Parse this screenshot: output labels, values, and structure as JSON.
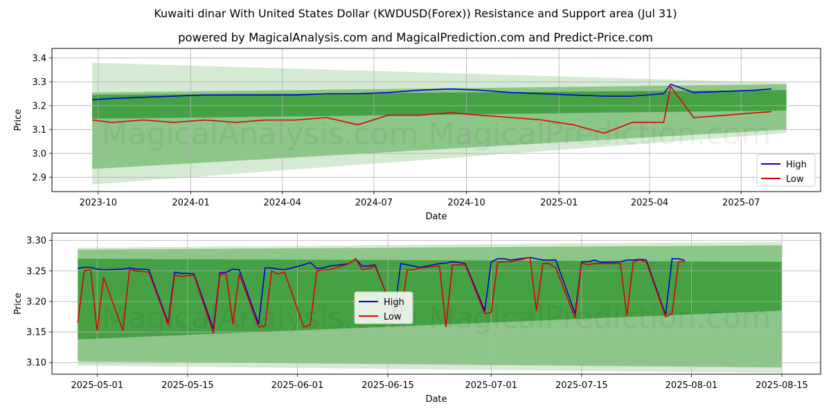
{
  "figure": {
    "title": "Kuwaiti dinar With United States Dollar (KWDUSD(Forex)) Resistance and Support area (Jul 31)",
    "subtitle": "powered by MagicalAnalysis.com and MagicalPrediction.com and Predict-Price.com",
    "watermark": "MagicalAnalysis.com    MagicalPrediction.com"
  },
  "colors": {
    "high": "#0000cc",
    "low": "#dd0000",
    "band_light": "#c6e3c3",
    "band_mid": "#7fbf7b",
    "band_dark": "#3a9a3a"
  },
  "chart_data": [
    {
      "type": "line",
      "title": "",
      "xlabel": "Date",
      "ylabel": "Price",
      "x_ticks": [
        "2023-10",
        "2024-01",
        "2024-04",
        "2024-07",
        "2024-10",
        "2025-01",
        "2025-04",
        "2025-07"
      ],
      "y_ticks": [
        "2.9",
        "3.0",
        "3.1",
        "3.2",
        "3.3",
        "3.4"
      ],
      "xlim": [
        "2023-08-16",
        "2025-09-18"
      ],
      "ylim": [
        2.84,
        3.44
      ],
      "grid": true,
      "legend": "lower-right",
      "bands": {
        "x": [
          "2023-09-25",
          "2025-08-15"
        ],
        "outer_top": [
          3.38,
          3.295
        ],
        "outer_bottom": [
          2.87,
          3.085
        ],
        "mid_top": [
          3.255,
          3.29
        ],
        "mid_bottom": [
          2.935,
          3.1
        ],
        "inner_top": [
          3.245,
          3.265
        ],
        "inner_bottom": [
          3.145,
          3.18
        ]
      },
      "series": [
        {
          "name": "High",
          "x": [
            "2023-09-25",
            "2023-10-15",
            "2023-11-15",
            "2023-12-15",
            "2024-01-15",
            "2024-02-15",
            "2024-03-15",
            "2024-04-15",
            "2024-05-15",
            "2024-06-15",
            "2024-07-15",
            "2024-08-15",
            "2024-09-15",
            "2024-10-15",
            "2024-11-15",
            "2024-12-15",
            "2025-01-15",
            "2025-02-15",
            "2025-03-15",
            "2025-04-15",
            "2025-04-22",
            "2025-05-15",
            "2025-06-15",
            "2025-07-15",
            "2025-07-31"
          ],
          "values": [
            3.225,
            3.23,
            3.235,
            3.24,
            3.245,
            3.245,
            3.245,
            3.245,
            3.25,
            3.25,
            3.255,
            3.265,
            3.27,
            3.265,
            3.255,
            3.25,
            3.245,
            3.24,
            3.24,
            3.25,
            3.29,
            3.255,
            3.26,
            3.265,
            3.27
          ]
        },
        {
          "name": "Low",
          "x": [
            "2023-09-25",
            "2023-10-15",
            "2023-11-15",
            "2023-12-15",
            "2024-01-15",
            "2024-02-15",
            "2024-03-15",
            "2024-04-15",
            "2024-05-15",
            "2024-06-15",
            "2024-07-15",
            "2024-08-15",
            "2024-09-15",
            "2024-10-15",
            "2024-11-15",
            "2024-12-15",
            "2025-01-15",
            "2025-02-15",
            "2025-03-15",
            "2025-04-15",
            "2025-04-22",
            "2025-05-15",
            "2025-06-15",
            "2025-07-15",
            "2025-07-31"
          ],
          "values": [
            3.14,
            3.13,
            3.14,
            3.13,
            3.14,
            3.13,
            3.14,
            3.14,
            3.15,
            3.12,
            3.16,
            3.16,
            3.17,
            3.16,
            3.15,
            3.14,
            3.12,
            3.085,
            3.13,
            3.13,
            3.28,
            3.15,
            3.16,
            3.17,
            3.175
          ]
        }
      ]
    },
    {
      "type": "line",
      "title": "",
      "xlabel": "Date",
      "ylabel": "Price",
      "x_ticks": [
        "2025-05-01",
        "2025-05-15",
        "2025-06-01",
        "2025-06-15",
        "2025-07-01",
        "2025-07-15",
        "2025-08-01",
        "2025-08-15"
      ],
      "y_ticks": [
        "3.10",
        "3.15",
        "3.20",
        "3.25",
        "3.30"
      ],
      "xlim": [
        "2025-04-24",
        "2025-08-21"
      ],
      "ylim": [
        3.081,
        3.312
      ],
      "grid": true,
      "legend": "center",
      "bands": {
        "x": [
          "2025-04-28",
          "2025-08-15"
        ],
        "outer_top": [
          3.288,
          3.298
        ],
        "outer_bottom": [
          3.095,
          3.083
        ],
        "mid_top": [
          3.285,
          3.292
        ],
        "mid_bottom": [
          3.102,
          3.092
        ],
        "inner_top": [
          3.27,
          3.265
        ],
        "inner_bottom": [
          3.138,
          3.185
        ]
      },
      "series": [
        {
          "name": "High",
          "x": [
            "2025-04-28",
            "2025-04-29",
            "2025-04-30",
            "2025-05-01",
            "2025-05-02",
            "2025-05-05",
            "2025-05-06",
            "2025-05-07",
            "2025-05-08",
            "2025-05-09",
            "2025-05-12",
            "2025-05-13",
            "2025-05-14",
            "2025-05-15",
            "2025-05-16",
            "2025-05-19",
            "2025-05-20",
            "2025-05-21",
            "2025-05-22",
            "2025-05-23",
            "2025-05-26",
            "2025-05-27",
            "2025-05-28",
            "2025-05-29",
            "2025-05-30",
            "2025-06-02",
            "2025-06-03",
            "2025-06-04",
            "2025-06-05",
            "2025-06-06",
            "2025-06-09",
            "2025-06-10",
            "2025-06-11",
            "2025-06-12",
            "2025-06-13",
            "2025-06-16",
            "2025-06-17",
            "2025-06-18",
            "2025-06-19",
            "2025-06-20",
            "2025-06-23",
            "2025-06-24",
            "2025-06-25",
            "2025-06-26",
            "2025-06-27",
            "2025-06-30",
            "2025-07-01",
            "2025-07-02",
            "2025-07-03",
            "2025-07-04",
            "2025-07-07",
            "2025-07-08",
            "2025-07-09",
            "2025-07-10",
            "2025-07-11",
            "2025-07-14",
            "2025-07-15",
            "2025-07-16",
            "2025-07-17",
            "2025-07-18",
            "2025-07-21",
            "2025-07-22",
            "2025-07-23",
            "2025-07-24",
            "2025-07-25",
            "2025-07-28",
            "2025-07-29",
            "2025-07-30",
            "2025-07-31"
          ],
          "values": [
            3.254,
            3.256,
            3.256,
            3.253,
            3.252,
            3.253,
            3.255,
            3.253,
            3.253,
            3.252,
            3.165,
            3.248,
            3.246,
            3.246,
            3.245,
            3.155,
            3.247,
            3.248,
            3.253,
            3.252,
            3.163,
            3.255,
            3.255,
            3.253,
            3.252,
            3.26,
            3.264,
            3.254,
            3.255,
            3.258,
            3.262,
            3.27,
            3.258,
            3.258,
            3.26,
            3.18,
            3.262,
            3.26,
            3.258,
            3.256,
            3.262,
            3.263,
            3.265,
            3.264,
            3.262,
            3.185,
            3.265,
            3.27,
            3.27,
            3.268,
            3.272,
            3.27,
            3.268,
            3.268,
            3.268,
            3.18,
            3.265,
            3.265,
            3.268,
            3.264,
            3.265,
            3.268,
            3.268,
            3.269,
            3.268,
            3.178,
            3.27,
            3.27,
            3.267
          ]
        },
        {
          "name": "Low",
          "x": [
            "2025-04-28",
            "2025-04-29",
            "2025-04-30",
            "2025-05-01",
            "2025-05-02",
            "2025-05-05",
            "2025-05-06",
            "2025-05-07",
            "2025-05-08",
            "2025-05-09",
            "2025-05-12",
            "2025-05-13",
            "2025-05-14",
            "2025-05-15",
            "2025-05-16",
            "2025-05-19",
            "2025-05-20",
            "2025-05-21",
            "2025-05-22",
            "2025-05-23",
            "2025-05-26",
            "2025-05-27",
            "2025-05-28",
            "2025-05-29",
            "2025-05-30",
            "2025-06-02",
            "2025-06-03",
            "2025-06-04",
            "2025-06-05",
            "2025-06-06",
            "2025-06-09",
            "2025-06-10",
            "2025-06-11",
            "2025-06-12",
            "2025-06-13",
            "2025-06-16",
            "2025-06-17",
            "2025-06-18",
            "2025-06-19",
            "2025-06-20",
            "2025-06-23",
            "2025-06-24",
            "2025-06-25",
            "2025-06-26",
            "2025-06-27",
            "2025-06-30",
            "2025-07-01",
            "2025-07-02",
            "2025-07-03",
            "2025-07-04",
            "2025-07-07",
            "2025-07-08",
            "2025-07-09",
            "2025-07-10",
            "2025-07-11",
            "2025-07-14",
            "2025-07-15",
            "2025-07-16",
            "2025-07-17",
            "2025-07-18",
            "2025-07-21",
            "2025-07-22",
            "2025-07-23",
            "2025-07-24",
            "2025-07-25",
            "2025-07-28",
            "2025-07-29",
            "2025-07-30",
            "2025-07-31"
          ],
          "values": [
            3.165,
            3.25,
            3.252,
            3.152,
            3.24,
            3.152,
            3.252,
            3.25,
            3.249,
            3.248,
            3.162,
            3.243,
            3.241,
            3.242,
            3.243,
            3.148,
            3.244,
            3.245,
            3.163,
            3.245,
            3.158,
            3.16,
            3.25,
            3.245,
            3.248,
            3.158,
            3.162,
            3.25,
            3.252,
            3.252,
            3.262,
            3.27,
            3.252,
            3.254,
            3.258,
            3.182,
            3.176,
            3.252,
            3.252,
            3.255,
            3.258,
            3.158,
            3.26,
            3.26,
            3.26,
            3.18,
            3.182,
            3.264,
            3.265,
            3.265,
            3.272,
            3.185,
            3.262,
            3.262,
            3.255,
            3.173,
            3.263,
            3.26,
            3.262,
            3.262,
            3.262,
            3.177,
            3.265,
            3.268,
            3.265,
            3.175,
            3.18,
            3.265,
            3.265
          ]
        }
      ]
    }
  ]
}
